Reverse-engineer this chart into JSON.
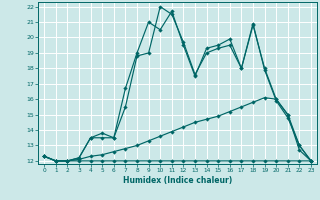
{
  "title": "",
  "xlabel": "Humidex (Indice chaleur)",
  "xlim": [
    -0.5,
    23.5
  ],
  "ylim": [
    11.8,
    22.3
  ],
  "xticks": [
    0,
    1,
    2,
    3,
    4,
    5,
    6,
    7,
    8,
    9,
    10,
    11,
    12,
    13,
    14,
    15,
    16,
    17,
    18,
    19,
    20,
    21,
    22,
    23
  ],
  "yticks": [
    12,
    13,
    14,
    15,
    16,
    17,
    18,
    19,
    20,
    21,
    22
  ],
  "background_color": "#cce8e8",
  "grid_color": "#ffffff",
  "line_color": "#006666",
  "line_a": {
    "x": [
      0,
      1,
      2,
      3,
      4,
      5,
      6,
      7,
      8,
      9,
      10,
      11,
      12,
      13,
      14,
      15,
      16,
      17,
      18,
      19,
      20,
      21,
      22,
      23
    ],
    "y": [
      12.3,
      12.0,
      12.0,
      12.2,
      13.5,
      13.8,
      13.5,
      16.7,
      19.0,
      21.0,
      20.5,
      21.7,
      19.5,
      17.5,
      19.3,
      19.5,
      19.9,
      18.0,
      20.9,
      17.9,
      15.9,
      14.8,
      13.0,
      12.0
    ]
  },
  "line_b": {
    "x": [
      0,
      1,
      2,
      3,
      4,
      5,
      6,
      7,
      8,
      9,
      10,
      11,
      12,
      13,
      14,
      15,
      16,
      17,
      18,
      19,
      20,
      21,
      22,
      23
    ],
    "y": [
      12.3,
      12.0,
      12.0,
      12.2,
      13.5,
      13.5,
      13.5,
      15.5,
      18.8,
      19.0,
      22.0,
      21.5,
      19.7,
      17.6,
      19.0,
      19.3,
      19.5,
      18.0,
      20.8,
      18.0,
      16.0,
      15.0,
      12.7,
      12.0
    ]
  },
  "line_c": {
    "x": [
      0,
      1,
      2,
      3,
      4,
      5,
      6,
      7,
      8,
      9,
      10,
      11,
      12,
      13,
      14,
      15,
      16,
      17,
      18,
      19,
      20,
      21,
      22,
      23
    ],
    "y": [
      12.3,
      12.0,
      12.0,
      12.0,
      12.0,
      12.0,
      12.0,
      12.0,
      12.0,
      12.0,
      12.0,
      12.0,
      12.0,
      12.0,
      12.0,
      12.0,
      12.0,
      12.0,
      12.0,
      12.0,
      12.0,
      12.0,
      12.0,
      12.0
    ]
  },
  "line_d": {
    "x": [
      0,
      1,
      2,
      3,
      4,
      5,
      6,
      7,
      8,
      9,
      10,
      11,
      12,
      13,
      14,
      15,
      16,
      17,
      18,
      19,
      20,
      21,
      22,
      23
    ],
    "y": [
      12.3,
      12.0,
      12.0,
      12.1,
      12.3,
      12.4,
      12.6,
      12.8,
      13.0,
      13.3,
      13.6,
      13.9,
      14.2,
      14.5,
      14.7,
      14.9,
      15.2,
      15.5,
      15.8,
      16.1,
      16.0,
      15.0,
      13.0,
      12.0
    ]
  }
}
